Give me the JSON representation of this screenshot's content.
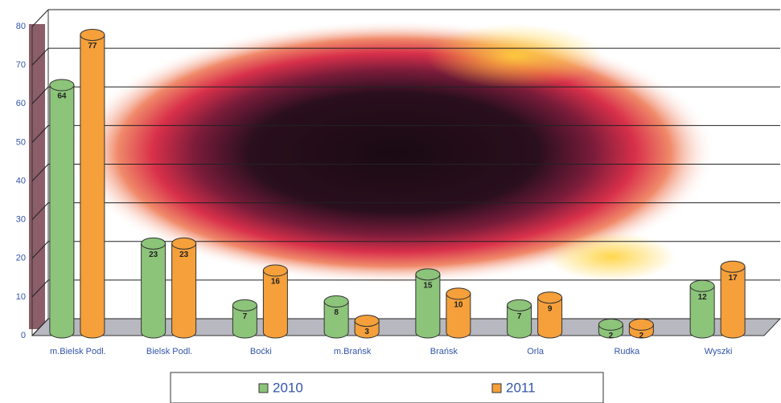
{
  "chart_data": {
    "type": "bar",
    "categories": [
      "m.Bielsk Podl.",
      "Bielsk Podl.",
      "Boćki",
      "m.Brańsk",
      "Brańsk",
      "Orla",
      "Rudka",
      "Wyszki"
    ],
    "series": [
      {
        "name": "2010",
        "color": "#8cc47a",
        "values": [
          64,
          23,
          7,
          8,
          15,
          7,
          2,
          12
        ]
      },
      {
        "name": "2011",
        "color": "#f5a03a",
        "values": [
          77,
          23,
          16,
          3,
          10,
          9,
          2,
          17
        ]
      }
    ],
    "ylim": [
      0,
      80
    ],
    "yticks": [
      0,
      10,
      20,
      30,
      40,
      50,
      60,
      70,
      80
    ],
    "grid": true,
    "legend": "bottom"
  }
}
